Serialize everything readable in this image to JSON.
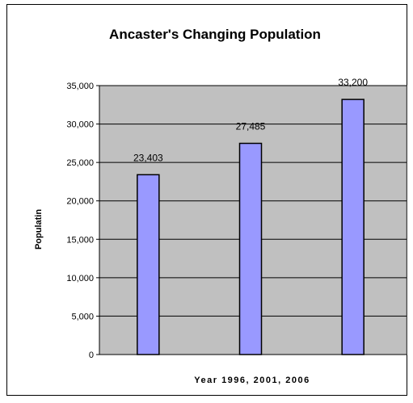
{
  "chart_data": {
    "type": "bar",
    "title": "Ancaster's Changing Population",
    "xlabel": "Year 1996, 2001, 2006",
    "ylabel": "Populatin",
    "categories": [
      "",
      "",
      ""
    ],
    "values": [
      23403,
      27485,
      33200
    ],
    "data_labels": [
      "23,403",
      "27,485",
      "33,200"
    ],
    "ylim": [
      0,
      35000
    ],
    "yticks": [
      0,
      5000,
      10000,
      15000,
      20000,
      25000,
      30000,
      35000
    ],
    "ytick_labels": [
      "0",
      "5,000",
      "10,000",
      "15,000",
      "20,000",
      "25,000",
      "30,000",
      "35,000"
    ],
    "grid": true,
    "legend": false,
    "colors": {
      "bar_fill": "#9999ff",
      "bar_stroke": "#000000",
      "plot_bg": "#c0c0c0",
      "grid": "#000000"
    }
  }
}
